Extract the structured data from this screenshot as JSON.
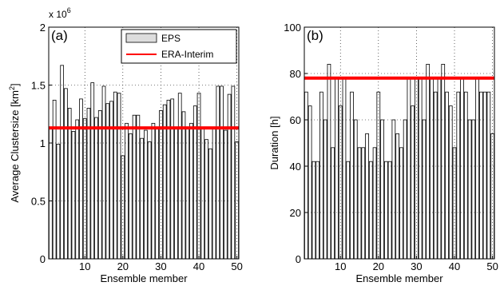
{
  "chart_data": [
    {
      "type": "bar",
      "panel_label": "(a)",
      "ylabel_main": "Average Clustersize [km",
      "ylabel_sup": "2",
      "ylabel_end": "]",
      "xlabel": "Ensemble member",
      "exponent_base": "x 10",
      "exponent_power": "6",
      "ylim": [
        0,
        2
      ],
      "xlim": [
        0.5,
        50.5
      ],
      "yticks": [
        0,
        0.5,
        1,
        1.5,
        2
      ],
      "ytick_labels": [
        "0",
        "0.5",
        "1",
        "1.5",
        "2"
      ],
      "xticks": [
        10,
        20,
        30,
        40,
        50
      ],
      "xtick_labels": [
        "10",
        "20",
        "30",
        "40",
        "50"
      ],
      "legend": {
        "position": "top-right",
        "eps_label": "EPS",
        "era_label": "ERA-Interim"
      },
      "grid": true,
      "x": [
        1,
        2,
        3,
        4,
        5,
        6,
        7,
        8,
        9,
        10,
        11,
        12,
        13,
        14,
        15,
        16,
        17,
        18,
        19,
        20,
        21,
        22,
        23,
        24,
        25,
        26,
        27,
        28,
        29,
        30,
        31,
        32,
        33,
        34,
        35,
        36,
        37,
        38,
        39,
        40,
        41,
        42,
        43,
        44,
        45,
        46,
        47,
        48,
        49,
        50
      ],
      "series": [
        {
          "name": "EPS",
          "values": [
            1.12,
            1.37,
            0.99,
            1.67,
            1.47,
            1.3,
            1.1,
            1.2,
            1.38,
            1.21,
            1.3,
            1.52,
            1.22,
            1.28,
            1.49,
            1.34,
            1.36,
            1.44,
            1.43,
            0.89,
            1.17,
            1.08,
            1.24,
            1.24,
            1.04,
            1.11,
            1.01,
            1.17,
            1.12,
            1.28,
            1.33,
            1.37,
            1.38,
            1.13,
            1.43,
            1.27,
            1.12,
            1.17,
            1.32,
            1.43,
            1.12,
            1.03,
            0.95,
            1.12,
            1.49,
            1.49,
            1.11,
            1.42,
            1.49,
            1.01
          ]
        }
      ],
      "reference": {
        "name": "ERA-Interim",
        "value": 1.13,
        "color": "#ff0000"
      },
      "bar_fill": "#ffffff",
      "bar_edge": "#000000"
    },
    {
      "type": "bar",
      "panel_label": "(b)",
      "ylabel": "Duration [h]",
      "xlabel": "Ensemble member",
      "ylim": [
        0,
        100
      ],
      "xlim": [
        0.5,
        50.5
      ],
      "yticks": [
        0,
        20,
        40,
        60,
        80,
        100
      ],
      "ytick_labels": [
        "0",
        "20",
        "40",
        "60",
        "80",
        "100"
      ],
      "xticks": [
        10,
        20,
        30,
        40,
        50
      ],
      "xtick_labels": [
        "10",
        "20",
        "30",
        "40",
        "50"
      ],
      "grid": true,
      "x": [
        1,
        2,
        3,
        4,
        5,
        6,
        7,
        8,
        9,
        10,
        11,
        12,
        13,
        14,
        15,
        16,
        17,
        18,
        19,
        20,
        21,
        22,
        23,
        24,
        25,
        26,
        27,
        28,
        29,
        30,
        31,
        32,
        33,
        34,
        35,
        36,
        37,
        38,
        39,
        40,
        41,
        42,
        43,
        44,
        45,
        46,
        47,
        48,
        49,
        50
      ],
      "series": [
        {
          "name": "EPS",
          "values": [
            72,
            66,
            42,
            42,
            72,
            60,
            84,
            48,
            78,
            66,
            78,
            42,
            72,
            60,
            48,
            48,
            54,
            42,
            48,
            72,
            60,
            42,
            42,
            60,
            54,
            48,
            60,
            78,
            66,
            78,
            78,
            60,
            84,
            78,
            72,
            78,
            84,
            72,
            66,
            48,
            72,
            78,
            72,
            60,
            60,
            78,
            72,
            72,
            72,
            54
          ]
        }
      ],
      "reference": {
        "name": "ERA-Interim",
        "value": 78,
        "color": "#ff0000"
      },
      "bar_fill": "#ffffff",
      "bar_edge": "#000000"
    }
  ]
}
